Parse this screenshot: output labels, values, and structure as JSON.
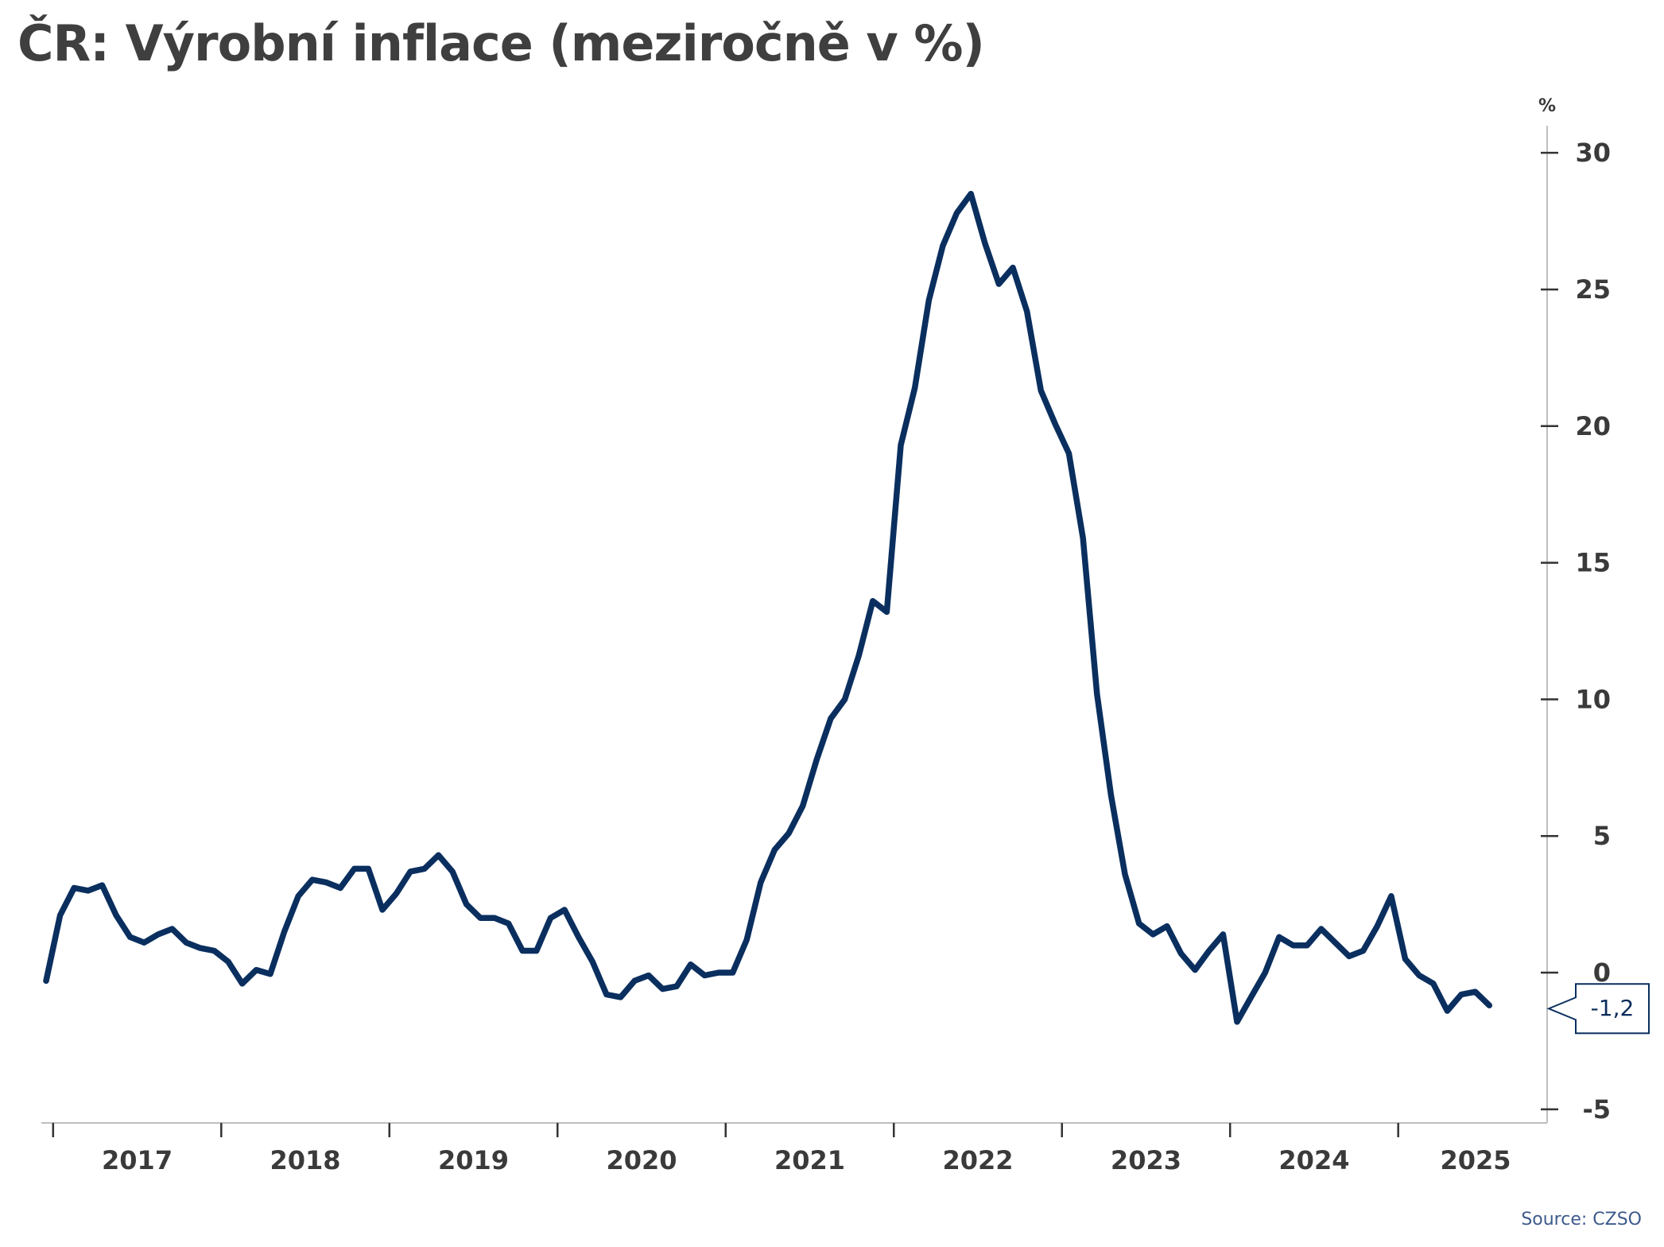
{
  "title": "ČR: Výrobní inflace (meziročně v %)",
  "source": "Source: CZSO",
  "colors": {
    "line": "#0a2f5f",
    "axis": "#bfbfbf",
    "text": "#3a3a3a"
  },
  "chart_data": {
    "type": "line",
    "title": "ČR: Výrobní inflace (meziročně v %)",
    "y_unit_label": "%",
    "y_axis_side": "right",
    "ylim": [
      -5.5,
      30.5
    ],
    "yticks": [
      -5,
      0,
      5,
      10,
      15,
      20,
      25,
      30
    ],
    "xlim": [
      2016.93,
      2025.81
    ],
    "x_year_labels": [
      "2017",
      "2018",
      "2019",
      "2020",
      "2021",
      "2022",
      "2023",
      "2024",
      "2025"
    ],
    "grid": false,
    "last_value_label": "-1,2",
    "series": [
      {
        "start": "2016-12",
        "frequency": "monthly",
        "values": [
          -0.3,
          2.1,
          3.1,
          3.0,
          3.2,
          2.1,
          1.3,
          1.1,
          1.4,
          1.6,
          1.1,
          0.9,
          0.8,
          0.4,
          -0.4,
          0.1,
          -0.05,
          1.5,
          2.8,
          3.4,
          3.3,
          3.1,
          3.8,
          3.8,
          2.3,
          2.9,
          3.7,
          3.8,
          4.3,
          3.7,
          2.5,
          2.0,
          2.0,
          1.8,
          0.8,
          0.8,
          2.0,
          2.3,
          1.3,
          0.4,
          -0.8,
          -0.9,
          -0.3,
          -0.1,
          -0.6,
          -0.5,
          0.3,
          -0.1,
          0.0,
          0.0,
          1.2,
          3.3,
          4.5,
          5.1,
          6.1,
          7.8,
          9.3,
          10.0,
          11.6,
          13.6,
          13.2,
          19.3,
          21.4,
          24.6,
          26.6,
          27.8,
          28.5,
          26.7,
          25.2,
          25.8,
          24.2,
          21.3,
          20.1,
          19.0,
          15.9,
          10.2,
          6.5,
          3.6,
          1.8,
          1.4,
          1.7,
          0.7,
          0.1,
          0.8,
          1.4,
          -1.8,
          -0.9,
          0.0,
          1.3,
          1.0,
          1.0,
          1.6,
          1.1,
          0.6,
          0.8,
          1.7,
          2.8,
          0.5,
          -0.1,
          -0.4,
          -1.4,
          -0.8,
          -0.7,
          -1.2
        ]
      }
    ]
  }
}
